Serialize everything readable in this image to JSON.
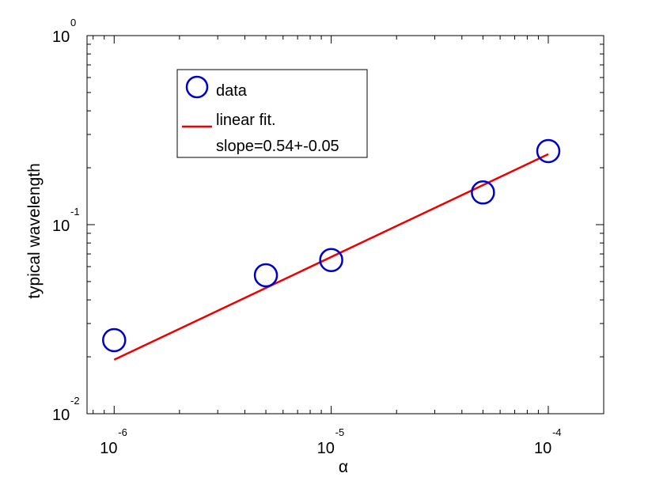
{
  "chart_data": {
    "type": "scatter",
    "xlabel": "α",
    "ylabel": "typical wavelength",
    "xscale": "log",
    "yscale": "log",
    "xlim": [
      7.5e-07,
      0.00018
    ],
    "ylim": [
      0.01,
      1
    ],
    "x_ticks": [
      {
        "value": 1e-06,
        "base": "10",
        "exp": "-6"
      },
      {
        "value": 1e-05,
        "base": "10",
        "exp": "-5"
      },
      {
        "value": 0.0001,
        "base": "10",
        "exp": "-4"
      }
    ],
    "y_ticks": [
      {
        "value": 0.01,
        "base": "10",
        "exp": "-2"
      },
      {
        "value": 0.1,
        "base": "10",
        "exp": "-1"
      },
      {
        "value": 1,
        "base": "10",
        "exp": "0"
      }
    ],
    "grid": false,
    "legend_position": "top-left",
    "series": [
      {
        "name": "data",
        "kind": "markers",
        "marker": "circle",
        "color": "#0000cc",
        "points": [
          {
            "x": 1e-06,
            "y": 0.0245
          },
          {
            "x": 5e-06,
            "y": 0.054
          },
          {
            "x": 1e-05,
            "y": 0.065
          },
          {
            "x": 5e-05,
            "y": 0.148
          },
          {
            "x": 0.0001,
            "y": 0.245
          }
        ]
      },
      {
        "name": "linear fit.",
        "kind": "line",
        "color": "#ee0000",
        "points": [
          {
            "x": 1e-06,
            "y": 0.0193
          },
          {
            "x": 0.0001,
            "y": 0.236
          }
        ]
      }
    ],
    "legend_note": "slope=0.54+-0.05"
  }
}
